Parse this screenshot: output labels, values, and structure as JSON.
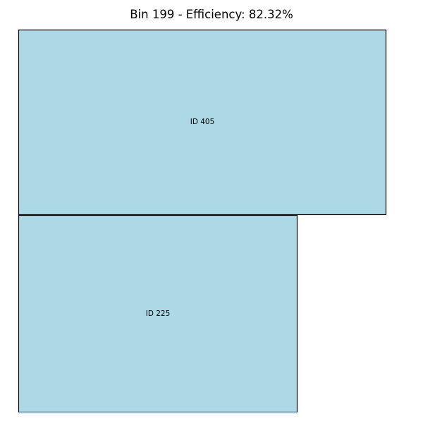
{
  "title": "Bin 199 - Efficiency: 82.32%",
  "fill_color": "#ADD8E6",
  "edge_color": "#000000",
  "items": [
    {
      "id": 405,
      "label": "ID 405"
    },
    {
      "id": 225,
      "label": "ID 225"
    }
  ]
}
